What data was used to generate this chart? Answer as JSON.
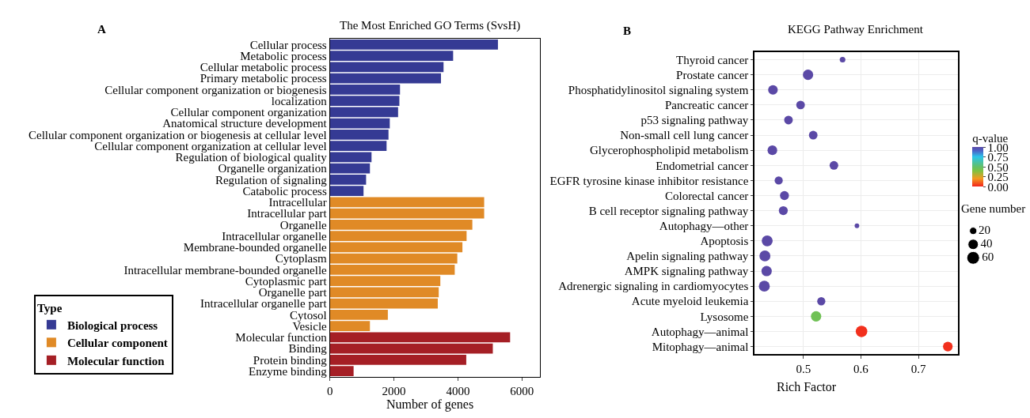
{
  "chart_data": [
    {
      "type": "bar",
      "orientation": "horizontal",
      "title": "The Most Enriched GO Terms (SvsH)",
      "xlabel": "Number of genes",
      "legend_title": "Type",
      "legend": "bottom left",
      "annotations": [
        "A"
      ],
      "categories": [
        "Cellular process",
        "Metabolic process",
        "Cellular metabolic process",
        "Primary metabolic process",
        "Cellular component organization or biogenesis",
        "localization",
        "Cellular component organization",
        "Anatomical structure development",
        "Cellular component organization or biogenesis at cellular level",
        "Cellular component organization at cellular level",
        "Regulation of biological quality",
        "Organelle organization",
        "Regulation of signaling",
        "Catabolic process",
        "Intracellular",
        "Intracellular part",
        "Organelle",
        "Intracellular organelle",
        "Membrane-bounded organelle",
        "Cytoplasm",
        "Intracellular membrane-bounded organelle",
        "Cytoplasmic part",
        "Organelle part",
        "Intracellular organelle part",
        "Cytosol",
        "Vesicle",
        "Molecular function",
        "Binding",
        "Protein binding",
        "Enzyme binding"
      ],
      "series": [
        {
          "name": "Biological process",
          "color": "#353a94",
          "values": [
            5250,
            3850,
            3550,
            3470,
            2190,
            2170,
            2130,
            1870,
            1830,
            1770,
            1300,
            1250,
            1130,
            1050,
            null,
            null,
            null,
            null,
            null,
            null,
            null,
            null,
            null,
            null,
            null,
            null,
            null,
            null,
            null,
            null
          ]
        },
        {
          "name": "Cellular component",
          "color": "#e08a26",
          "values": [
            null,
            null,
            null,
            null,
            null,
            null,
            null,
            null,
            null,
            null,
            null,
            null,
            null,
            null,
            4820,
            4820,
            4450,
            4270,
            4140,
            3980,
            3900,
            3450,
            3400,
            3370,
            1810,
            1250,
            null,
            null,
            null,
            null
          ]
        },
        {
          "name": "Molecular function",
          "color": "#a51f25",
          "values": [
            null,
            null,
            null,
            null,
            null,
            null,
            null,
            null,
            null,
            null,
            null,
            null,
            null,
            null,
            null,
            null,
            null,
            null,
            null,
            null,
            null,
            null,
            null,
            null,
            null,
            null,
            5630,
            5090,
            4260,
            740
          ]
        }
      ],
      "xlim": [
        0,
        6560
      ],
      "xticks": [
        0,
        2000,
        4000,
        6000
      ]
    },
    {
      "type": "bubble",
      "orientation": "horizontal",
      "title": "KEGG Pathway Enrichment",
      "xlabel": "Rich Factor",
      "clabel": "q-value",
      "legend_title": "Gene number",
      "size_legend": [
        20,
        40,
        60
      ],
      "annotations": [
        "B"
      ],
      "grid": true,
      "categories": [
        "Thyroid cancer",
        "Prostate cancer",
        "Phosphatidylinositol signaling system",
        "Pancreatic cancer",
        "p53 signaling pathway",
        "Non-small cell lung cancer",
        "Glycerophospholipid metabolism",
        "Endometrial cancer",
        "EGFR tyrosine kinase inhibitor resistance",
        "Colorectal cancer",
        "B cell receptor signaling pathway",
        "Autophagy—other",
        "Apoptosis",
        "Apelin signaling pathway",
        "AMPK signaling pathway",
        "Adrenergic signaling in cardiomyocytes",
        "Acute myeloid leukemia",
        "Lysosome",
        "Autophagy—animal",
        "Mitophagy—animal"
      ],
      "values": [
        0.568,
        0.508,
        0.447,
        0.495,
        0.474,
        0.517,
        0.446,
        0.553,
        0.457,
        0.467,
        0.465,
        0.593,
        0.437,
        0.433,
        0.436,
        0.432,
        0.531,
        0.522,
        0.601,
        0.751
      ],
      "sizes": [
        12,
        40,
        35,
        28,
        28,
        28,
        35,
        28,
        25,
        30,
        30,
        8,
        45,
        45,
        40,
        45,
        25,
        40,
        50,
        35
      ],
      "cvalues": [
        1,
        1,
        1,
        1,
        1,
        1,
        1,
        1,
        1,
        1,
        1,
        1,
        1,
        1,
        1,
        1,
        1,
        0.45,
        0.02,
        0.02
      ],
      "clim": [
        0,
        1
      ],
      "cticks": [
        {
          "value": 0,
          "label": "0.00"
        },
        {
          "value": 0.25,
          "label": "0.25"
        },
        {
          "value": 0.5,
          "label": "0.50"
        },
        {
          "value": 0.75,
          "label": "0.75"
        },
        {
          "value": 1,
          "label": "1.00"
        }
      ],
      "xlim": [
        0.415,
        0.769
      ],
      "xticks": [
        0.5,
        0.6,
        0.7
      ]
    }
  ]
}
